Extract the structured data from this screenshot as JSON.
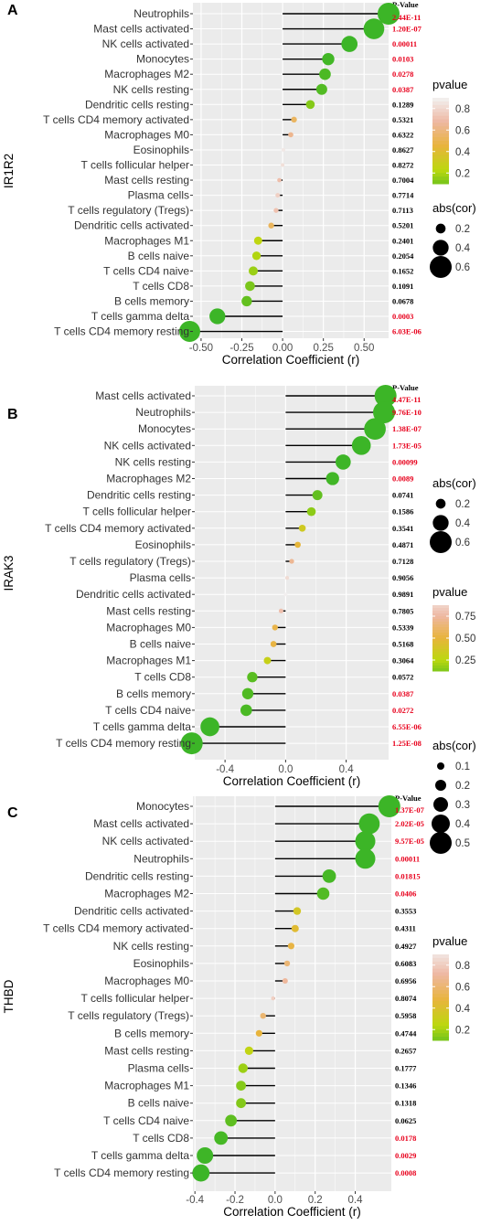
{
  "chart_data": [
    {
      "type": "lollipop",
      "panel": "A",
      "ylabel": "IR1R2",
      "xlabel": "Correlation Coefficient (r)",
      "xlim": [
        -0.55,
        0.65
      ],
      "xticks": [
        -0.5,
        -0.25,
        0.0,
        0.25,
        0.5
      ],
      "xtick_labels": [
        "-0.50",
        "-0.25",
        "0.00",
        "0.25",
        "0.50"
      ],
      "pvalue_header": "P-Value",
      "rows": [
        {
          "cell": "Neutrophils",
          "r": 0.65,
          "p": "2.44E-11",
          "pv": 0.0,
          "sig": true
        },
        {
          "cell": "Mast cells activated",
          "r": 0.56,
          "p": "1.20E-07",
          "pv": 0.0,
          "sig": true
        },
        {
          "cell": "NK cells activated",
          "r": 0.41,
          "p": "0.00011",
          "pv": 0.0001,
          "sig": true
        },
        {
          "cell": "Monocytes",
          "r": 0.28,
          "p": "0.0103",
          "pv": 0.0103,
          "sig": true
        },
        {
          "cell": "Macrophages M2",
          "r": 0.26,
          "p": "0.0278",
          "pv": 0.0278,
          "sig": true
        },
        {
          "cell": "NK cells resting",
          "r": 0.24,
          "p": "0.0387",
          "pv": 0.0387,
          "sig": true
        },
        {
          "cell": "Dendritic cells resting",
          "r": 0.17,
          "p": "0.1289",
          "pv": 0.1289,
          "sig": false
        },
        {
          "cell": "T cells CD4 memory activated",
          "r": 0.07,
          "p": "0.5321",
          "pv": 0.5321,
          "sig": false
        },
        {
          "cell": "Macrophages M0",
          "r": 0.05,
          "p": "0.6322",
          "pv": 0.6322,
          "sig": false
        },
        {
          "cell": "Eosinophils",
          "r": 0.005,
          "p": "0.8627",
          "pv": 0.8627,
          "sig": false
        },
        {
          "cell": "T cells follicular helper",
          "r": 0.0,
          "p": "0.8272",
          "pv": 0.8272,
          "sig": false
        },
        {
          "cell": "Mast cells resting",
          "r": -0.02,
          "p": "0.7004",
          "pv": 0.7004,
          "sig": false
        },
        {
          "cell": "Plasma cells",
          "r": -0.03,
          "p": "0.7714",
          "pv": 0.7714,
          "sig": false
        },
        {
          "cell": "T cells regulatory (Tregs)",
          "r": -0.04,
          "p": "0.7113",
          "pv": 0.7113,
          "sig": false
        },
        {
          "cell": "Dendritic cells activated",
          "r": -0.07,
          "p": "0.5201",
          "pv": 0.5201,
          "sig": false
        },
        {
          "cell": "Macrophages M1",
          "r": -0.15,
          "p": "0.2401",
          "pv": 0.2401,
          "sig": false
        },
        {
          "cell": "B cells naive",
          "r": -0.16,
          "p": "0.2054",
          "pv": 0.2054,
          "sig": false
        },
        {
          "cell": "T cells CD4 naive",
          "r": -0.18,
          "p": "0.1652",
          "pv": 0.1652,
          "sig": false
        },
        {
          "cell": "T cells CD8",
          "r": -0.2,
          "p": "0.1091",
          "pv": 0.1091,
          "sig": false
        },
        {
          "cell": "B cells memory",
          "r": -0.22,
          "p": "0.0678",
          "pv": 0.0678,
          "sig": false
        },
        {
          "cell": "T cells gamma delta",
          "r": -0.4,
          "p": "0.0003",
          "pv": 0.0003,
          "sig": true
        },
        {
          "cell": "T cells CD4 memory resting",
          "r": -0.57,
          "p": "6.03E-06",
          "pv": 0.0,
          "sig": true
        }
      ],
      "legend_order": [
        "pvalue",
        "abs(cor)"
      ],
      "pvalue_legend": {
        "title": "pvalue",
        "labels": [
          "0.8",
          "0.6",
          "0.4",
          "0.2"
        ],
        "values": [
          0.8,
          0.6,
          0.4,
          0.2
        ],
        "range": [
          0.0,
          0.9
        ]
      },
      "size_legend": {
        "title": "abs(cor)",
        "labels": [
          "0.2",
          "0.4",
          "0.6"
        ],
        "values": [
          0.2,
          0.4,
          0.6
        ]
      }
    },
    {
      "type": "lollipop",
      "panel": "B",
      "ylabel": "IRAK3",
      "xlabel": "Correlation Coefficient (r)",
      "xlim": [
        -0.6,
        0.68
      ],
      "xticks": [
        -0.4,
        0.0,
        0.4
      ],
      "xtick_labels": [
        "-0.4",
        "0.0",
        "0.4"
      ],
      "pvalue_header": "P-Value",
      "rows": [
        {
          "cell": "Mast cells activated",
          "r": 0.66,
          "p": "4.47E-11",
          "pv": 0.0,
          "sig": true
        },
        {
          "cell": "Neutrophils",
          "r": 0.65,
          "p": "9.76E-10",
          "pv": 0.0,
          "sig": true
        },
        {
          "cell": "Monocytes",
          "r": 0.59,
          "p": "1.38E-07",
          "pv": 0.0,
          "sig": true
        },
        {
          "cell": "NK cells activated",
          "r": 0.5,
          "p": "1.73E-05",
          "pv": 0.0,
          "sig": true
        },
        {
          "cell": "NK cells resting",
          "r": 0.38,
          "p": "0.00099",
          "pv": 0.001,
          "sig": true
        },
        {
          "cell": "Macrophages M2",
          "r": 0.31,
          "p": "0.0089",
          "pv": 0.0089,
          "sig": true
        },
        {
          "cell": "Dendritic cells resting",
          "r": 0.21,
          "p": "0.0741",
          "pv": 0.0741,
          "sig": false
        },
        {
          "cell": "T cells follicular helper",
          "r": 0.17,
          "p": "0.1586",
          "pv": 0.1586,
          "sig": false
        },
        {
          "cell": "T cells CD4 memory activated",
          "r": 0.11,
          "p": "0.3541",
          "pv": 0.3541,
          "sig": false
        },
        {
          "cell": "Eosinophils",
          "r": 0.08,
          "p": "0.4871",
          "pv": 0.4871,
          "sig": false
        },
        {
          "cell": "T cells regulatory (Tregs)",
          "r": 0.04,
          "p": "0.7128",
          "pv": 0.7128,
          "sig": false
        },
        {
          "cell": "Plasma cells",
          "r": 0.01,
          "p": "0.9056",
          "pv": 0.9056,
          "sig": false
        },
        {
          "cell": "Dendritic cells activated",
          "r": 0.0,
          "p": "0.9891",
          "pv": 0.9891,
          "sig": false
        },
        {
          "cell": "Mast cells resting",
          "r": -0.03,
          "p": "0.7805",
          "pv": 0.7805,
          "sig": false
        },
        {
          "cell": "Macrophages M0",
          "r": -0.07,
          "p": "0.5339",
          "pv": 0.5339,
          "sig": false
        },
        {
          "cell": "B cells naive",
          "r": -0.08,
          "p": "0.5168",
          "pv": 0.5168,
          "sig": false
        },
        {
          "cell": "Macrophages M1",
          "r": -0.12,
          "p": "0.3064",
          "pv": 0.3064,
          "sig": false
        },
        {
          "cell": "T cells CD8",
          "r": -0.22,
          "p": "0.0572",
          "pv": 0.0572,
          "sig": false
        },
        {
          "cell": "B cells memory",
          "r": -0.25,
          "p": "0.0387",
          "pv": 0.0387,
          "sig": true
        },
        {
          "cell": "T cells CD4 naive",
          "r": -0.26,
          "p": "0.0272",
          "pv": 0.0272,
          "sig": true
        },
        {
          "cell": "T cells gamma delta",
          "r": -0.5,
          "p": "6.55E-06",
          "pv": 0.0,
          "sig": true
        },
        {
          "cell": "T cells CD4 memory resting",
          "r": -0.62,
          "p": "1.25E-08",
          "pv": 0.0,
          "sig": true
        }
      ],
      "legend_order": [
        "abs(cor)",
        "pvalue"
      ],
      "pvalue_legend": {
        "title": "pvalue",
        "labels": [
          "0.75",
          "0.50",
          "0.25"
        ],
        "values": [
          0.75,
          0.5,
          0.25
        ],
        "range": [
          0.0,
          1.0
        ]
      },
      "size_legend": {
        "title": "abs(cor)",
        "labels": [
          "0.2",
          "0.4",
          "0.6"
        ],
        "values": [
          0.2,
          0.4,
          0.6
        ]
      }
    },
    {
      "type": "lollipop",
      "panel": "C",
      "ylabel": "THBD",
      "xlabel": "Correlation Coefficient (r)",
      "xlim": [
        -0.41,
        0.58
      ],
      "xticks": [
        -0.4,
        -0.2,
        0.0,
        0.2,
        0.4
      ],
      "xtick_labels": [
        "-0.4",
        "-0.2",
        "0.0",
        "0.2",
        "0.4"
      ],
      "pvalue_header": "P-Value",
      "rows": [
        {
          "cell": "Monocytes",
          "r": 0.57,
          "p": "1.37E-07",
          "pv": 0.0,
          "sig": true
        },
        {
          "cell": "Mast cells activated",
          "r": 0.47,
          "p": "2.02E-05",
          "pv": 0.0,
          "sig": true
        },
        {
          "cell": "NK cells activated",
          "r": 0.45,
          "p": "9.57E-05",
          "pv": 0.0001,
          "sig": true
        },
        {
          "cell": "Neutrophils",
          "r": 0.45,
          "p": "0.00011",
          "pv": 0.0001,
          "sig": true
        },
        {
          "cell": "Dendritic cells resting",
          "r": 0.27,
          "p": "0.01815",
          "pv": 0.0182,
          "sig": true
        },
        {
          "cell": "Macrophages M2",
          "r": 0.24,
          "p": "0.0406",
          "pv": 0.0406,
          "sig": true
        },
        {
          "cell": "Dendritic cells activated",
          "r": 0.11,
          "p": "0.3553",
          "pv": 0.3553,
          "sig": false
        },
        {
          "cell": "T cells CD4 memory activated",
          "r": 0.1,
          "p": "0.4311",
          "pv": 0.4311,
          "sig": false
        },
        {
          "cell": "NK cells resting",
          "r": 0.08,
          "p": "0.4927",
          "pv": 0.4927,
          "sig": false
        },
        {
          "cell": "Eosinophils",
          "r": 0.06,
          "p": "0.6083",
          "pv": 0.6083,
          "sig": false
        },
        {
          "cell": "Macrophages M0",
          "r": 0.05,
          "p": "0.6956",
          "pv": 0.6956,
          "sig": false
        },
        {
          "cell": "T cells follicular helper",
          "r": -0.01,
          "p": "0.8074",
          "pv": 0.8074,
          "sig": false
        },
        {
          "cell": "T cells regulatory (Tregs)",
          "r": -0.06,
          "p": "0.5958",
          "pv": 0.5958,
          "sig": false
        },
        {
          "cell": "B cells memory",
          "r": -0.08,
          "p": "0.4744",
          "pv": 0.4744,
          "sig": false
        },
        {
          "cell": "Mast cells resting",
          "r": -0.13,
          "p": "0.2657",
          "pv": 0.2657,
          "sig": false
        },
        {
          "cell": "Plasma cells",
          "r": -0.16,
          "p": "0.1777",
          "pv": 0.1777,
          "sig": false
        },
        {
          "cell": "Macrophages M1",
          "r": -0.17,
          "p": "0.1346",
          "pv": 0.1346,
          "sig": false
        },
        {
          "cell": "B cells naive",
          "r": -0.17,
          "p": "0.1318",
          "pv": 0.1318,
          "sig": false
        },
        {
          "cell": "T cells CD4 naive",
          "r": -0.22,
          "p": "0.0625",
          "pv": 0.0625,
          "sig": false
        },
        {
          "cell": "T cells CD8",
          "r": -0.27,
          "p": "0.0178",
          "pv": 0.0178,
          "sig": true
        },
        {
          "cell": "T cells gamma delta",
          "r": -0.35,
          "p": "0.0029",
          "pv": 0.0029,
          "sig": true
        },
        {
          "cell": "T cells CD4 memory resting",
          "r": -0.37,
          "p": "0.0008",
          "pv": 0.0008,
          "sig": true
        }
      ],
      "legend_order": [
        "abs(cor)",
        "pvalue"
      ],
      "pvalue_legend": {
        "title": "pvalue",
        "labels": [
          "0.8",
          "0.6",
          "0.4",
          "0.2"
        ],
        "values": [
          0.8,
          0.6,
          0.4,
          0.2
        ],
        "range": [
          0.0,
          0.95
        ]
      },
      "size_legend": {
        "title": "abs(cor)",
        "labels": [
          "0.1",
          "0.2",
          "0.3",
          "0.4",
          "0.5"
        ],
        "values": [
          0.1,
          0.2,
          0.3,
          0.4,
          0.5
        ]
      }
    }
  ],
  "colors": {
    "panel_bg": "#ebebeb",
    "grid_major": "#ffffff",
    "stem": "#000000",
    "sig_text": "#e8001c",
    "nonsig_text": "#000000",
    "scale_low": "#3cb527",
    "scale_mid_low": "#bcd80e",
    "scale_mid": "#e8b43c",
    "scale_mid_high": "#eeb7a2",
    "scale_high": "#f2f2f2"
  }
}
